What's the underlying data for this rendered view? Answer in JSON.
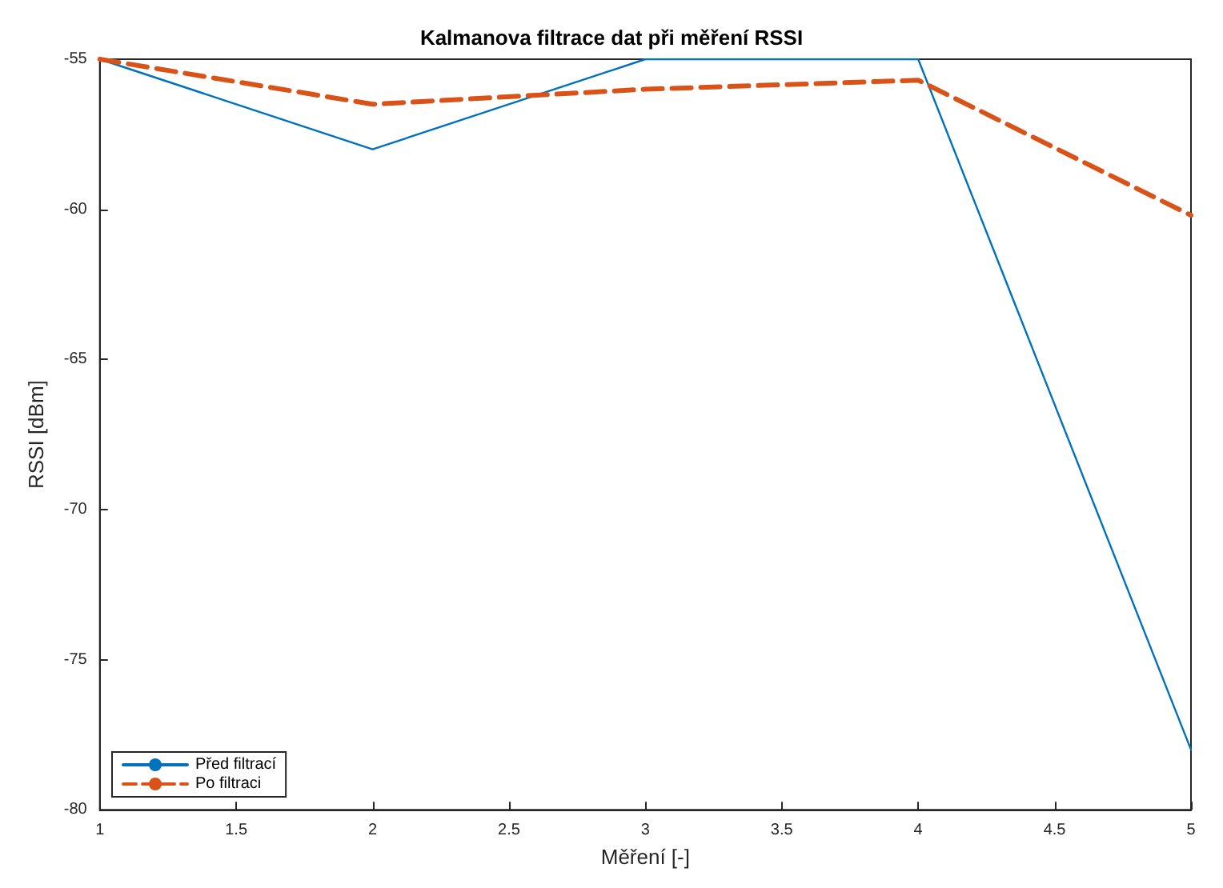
{
  "chart_data": {
    "type": "line",
    "title": "Kalmanova filtrace dat při měření RSSI",
    "xlabel": "Měření [-]",
    "ylabel": "RSSI [dBm]",
    "x": [
      1,
      2,
      3,
      4,
      5
    ],
    "series": [
      {
        "name": "Před filtrací",
        "color": "#0072bd",
        "values": [
          -55,
          -58,
          -55,
          -55,
          -78
        ],
        "line_style": "solid"
      },
      {
        "name": "Po filtraci",
        "color": "#d95319",
        "values": [
          -55,
          -56.5,
          -56,
          -55.7,
          -60.2
        ],
        "line_style": "dashed"
      }
    ],
    "xlim": [
      1,
      5
    ],
    "xticks": [
      1,
      1.5,
      2,
      2.5,
      3,
      3.5,
      4,
      4.5,
      5
    ],
    "ylim": [
      -80,
      -55
    ],
    "yticks": [
      -80,
      -75,
      -70,
      -65,
      -60,
      -55
    ],
    "grid": false,
    "legend": "bottom left",
    "marker": "none"
  }
}
